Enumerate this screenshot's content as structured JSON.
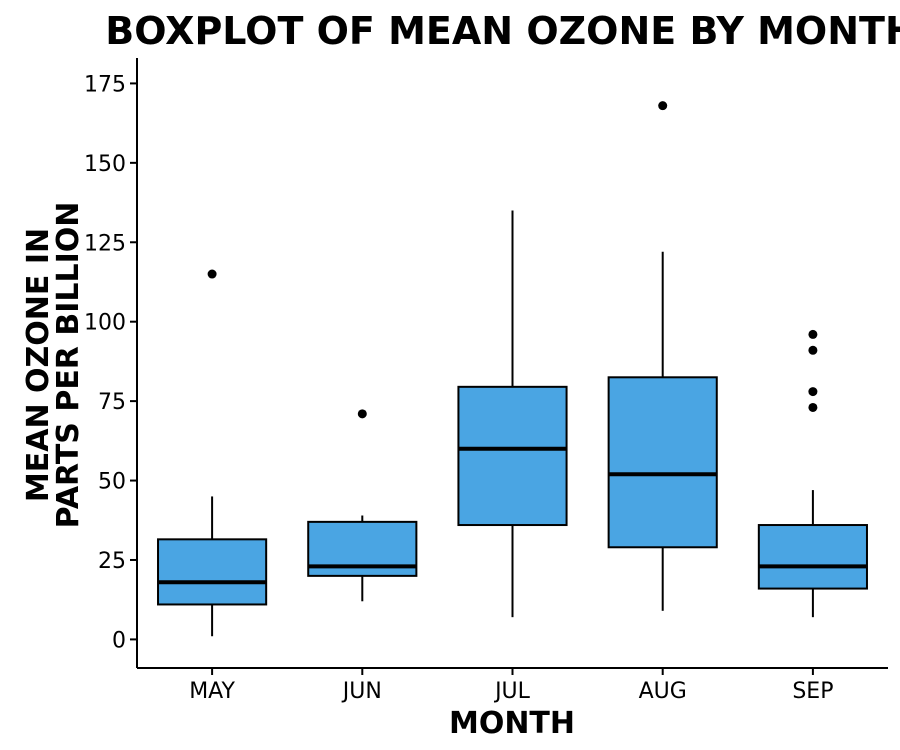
{
  "chart_data": {
    "type": "boxplot",
    "title": "BOXPLOT OF MEAN OZONE BY MONTH",
    "xlabel": "MONTH",
    "ylabel_lines": [
      "MEAN OZONE IN",
      "PARTS PER BILLION"
    ],
    "ylim": [
      -9,
      183
    ],
    "yticks": [
      0,
      25,
      50,
      75,
      100,
      125,
      150,
      175
    ],
    "grid": false,
    "legend": "none",
    "box_color": "#4aa5e3",
    "categories": [
      "MAY",
      "JUN",
      "JUL",
      "AUG",
      "SEP"
    ],
    "boxes": [
      {
        "category": "MAY",
        "whisker_low": 1,
        "q1": 11,
        "median": 18,
        "q3": 31.5,
        "whisker_high": 45,
        "outliers": [
          115
        ]
      },
      {
        "category": "JUN",
        "whisker_low": 12,
        "q1": 20,
        "median": 23,
        "q3": 37,
        "whisker_high": 39,
        "outliers": [
          71
        ]
      },
      {
        "category": "JUL",
        "whisker_low": 7,
        "q1": 36,
        "median": 60,
        "q3": 79.5,
        "whisker_high": 135,
        "outliers": []
      },
      {
        "category": "AUG",
        "whisker_low": 9,
        "q1": 29,
        "median": 52,
        "q3": 82.5,
        "whisker_high": 122,
        "outliers": [
          168
        ]
      },
      {
        "category": "SEP",
        "whisker_low": 7,
        "q1": 16,
        "median": 23,
        "q3": 36,
        "whisker_high": 47,
        "outliers": [
          73,
          78,
          91,
          96
        ]
      }
    ]
  }
}
